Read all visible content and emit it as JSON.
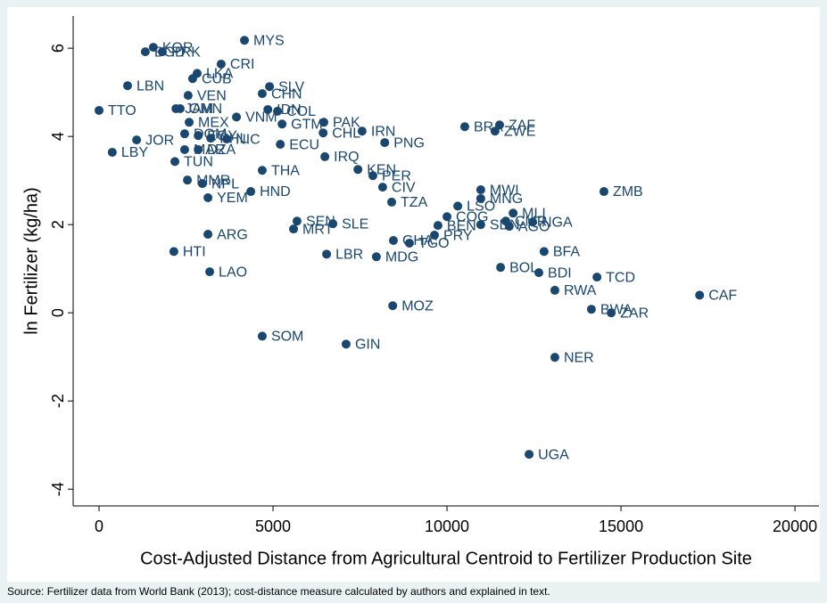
{
  "chart_data": {
    "type": "scatter",
    "x_label": "Cost-Adjusted Distance from Agricultural Centroid to Fertilizer Production Site",
    "y_label": "ln Fertilizer (kg/ha)",
    "note": "Source: Fertilizer data from World Bank (2013); cost-distance measure calculated by authors and explained in text.",
    "color": "#1a476f",
    "grid": false,
    "xlim": [
      -744,
      20690
    ],
    "ylim": [
      -4.38,
      6.73
    ],
    "xticks": [
      0,
      5000,
      10000,
      15000,
      20000
    ],
    "yticks": [
      -4,
      -2,
      0,
      2,
      4,
      6
    ],
    "labels": [
      "MYS",
      "KOR",
      "BGD",
      "PRK",
      "CRI",
      "LKA",
      "CUB",
      "LBN",
      "SLV",
      "VEN",
      "CHN",
      "TTO",
      "JAM",
      "OMN",
      "IDN",
      "COL",
      "VNM",
      "MEX",
      "GTM",
      "PAK",
      "CHL",
      "IRN",
      "BRA",
      "ZAF",
      "ZWE",
      "PNG",
      "JOR",
      "ECU",
      "NIC",
      "DOM",
      "EGY",
      "PHL",
      "MAR",
      "DZA",
      "TUN",
      "LBY",
      "IRQ",
      "THA",
      "KEN",
      "PER",
      "MMR",
      "NPL",
      "CIV",
      "HND",
      "YEM",
      "TZA",
      "MWI",
      "MNG",
      "ZMB",
      "LSO",
      "MLI",
      "COG",
      "CMR",
      "NGA",
      "SDN",
      "AGO",
      "SEN",
      "SLE",
      "MRT",
      "BEN",
      "PRY",
      "ARG",
      "GHA",
      "TGO",
      "BFA",
      "HTI",
      "LBR",
      "MDG",
      "BOL",
      "BDI",
      "LAO",
      "TCD",
      "RWA",
      "CAF",
      "MOZ",
      "BWA",
      "ZAR",
      "SOM",
      "GIN",
      "NER",
      "UGA"
    ],
    "x": [
      4180,
      1560,
      1330,
      1820,
      3510,
      2820,
      2690,
      820,
      4900,
      2560,
      4690,
      0,
      2210,
      2330,
      4850,
      5130,
      3950,
      2590,
      5260,
      6460,
      6440,
      7560,
      10510,
      11510,
      11380,
      8210,
      1080,
      5210,
      3670,
      2460,
      2850,
      3210,
      2460,
      2850,
      2180,
      380,
      6490,
      4690,
      7440,
      7870,
      2540,
      2970,
      8150,
      4360,
      3130,
      8410,
      10970,
      10970,
      14510,
      10310,
      11900,
      10000,
      11690,
      12460,
      10970,
      11790,
      5690,
      6720,
      5590,
      9740,
      9640,
      3130,
      8460,
      8920,
      12790,
      2150,
      6540,
      7970,
      11540,
      12640,
      3180,
      14310,
      13100,
      17260,
      8440,
      14150,
      14720,
      4690,
      7100,
      13100,
      12360
    ],
    "values": [
      6.18,
      6.02,
      5.92,
      5.92,
      5.64,
      5.43,
      5.31,
      5.15,
      5.13,
      4.93,
      4.97,
      4.59,
      4.63,
      4.63,
      4.61,
      4.57,
      4.44,
      4.32,
      4.28,
      4.32,
      4.08,
      4.12,
      4.22,
      4.26,
      4.12,
      3.86,
      3.92,
      3.82,
      3.94,
      4.06,
      4.02,
      3.96,
      3.7,
      3.7,
      3.43,
      3.64,
      3.54,
      3.23,
      3.25,
      3.11,
      3.01,
      2.93,
      2.85,
      2.75,
      2.61,
      2.51,
      2.79,
      2.59,
      2.75,
      2.42,
      2.26,
      2.18,
      2.08,
      2.06,
      2.0,
      1.96,
      2.08,
      2.02,
      1.9,
      1.98,
      1.76,
      1.78,
      1.64,
      1.58,
      1.39,
      1.39,
      1.33,
      1.27,
      1.03,
      0.91,
      0.93,
      0.81,
      0.51,
      0.4,
      0.16,
      0.08,
      0.0,
      -0.53,
      -0.71,
      -1.01,
      -3.21
    ]
  }
}
